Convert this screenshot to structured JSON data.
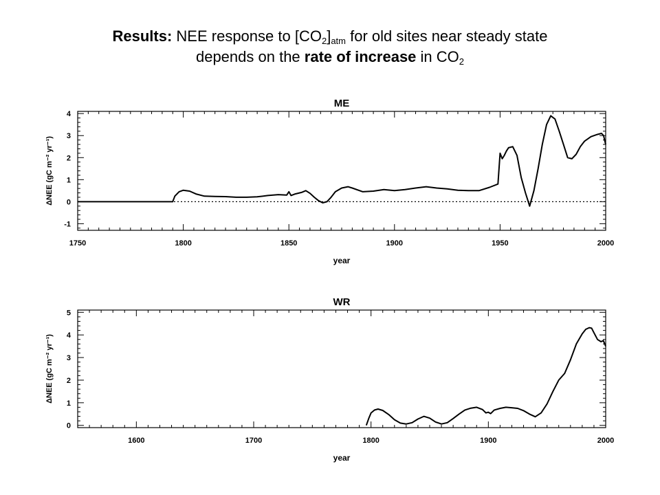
{
  "slide": {
    "title_bold_1": "Results:",
    "title_text_1": " NEE response to [CO",
    "title_sub_1": "2",
    "title_text_2": "]",
    "title_sub_2": "atm",
    "title_text_3": " for old sites near steady state",
    "title_text_4": "depends on the ",
    "title_bold_2": "rate of increase",
    "title_text_5": " in CO",
    "title_sub_3": "2"
  },
  "chart_data": [
    {
      "type": "line",
      "title": "ME",
      "xlabel": "year",
      "ylabel": "ΔNEE (gC m⁻² yr⁻¹)",
      "xlim": [
        1750,
        2000
      ],
      "ylim": [
        -1.3,
        4.1
      ],
      "xticks": [
        1750,
        1800,
        1850,
        1900,
        1950,
        2000
      ],
      "yticks": [
        -1,
        0,
        1,
        2,
        3,
        4
      ],
      "zero_line": "dotted",
      "series": [
        {
          "x": [
            1750,
            1795,
            1796,
            1798,
            1800,
            1803,
            1806,
            1810,
            1815,
            1820,
            1825,
            1830,
            1835,
            1840,
            1845,
            1849,
            1850,
            1851,
            1853,
            1856,
            1858,
            1860,
            1862,
            1864,
            1866,
            1868,
            1870,
            1872,
            1875,
            1878,
            1880,
            1885,
            1890,
            1895,
            1900,
            1905,
            1910,
            1915,
            1920,
            1925,
            1930,
            1935,
            1940,
            1945,
            1949,
            1950,
            1951,
            1952,
            1953,
            1954,
            1956,
            1958,
            1960,
            1962,
            1964,
            1966,
            1968,
            1970,
            1972,
            1974,
            1976,
            1978,
            1980,
            1982,
            1984,
            1986,
            1988,
            1990,
            1993,
            1996,
            1998,
            1999,
            2000
          ],
          "y": [
            0,
            0,
            0.25,
            0.45,
            0.52,
            0.48,
            0.35,
            0.25,
            0.24,
            0.23,
            0.2,
            0.2,
            0.22,
            0.28,
            0.32,
            0.3,
            0.45,
            0.28,
            0.35,
            0.42,
            0.5,
            0.38,
            0.2,
            0.05,
            -0.05,
            0.0,
            0.2,
            0.45,
            0.62,
            0.68,
            0.62,
            0.45,
            0.48,
            0.55,
            0.5,
            0.55,
            0.62,
            0.68,
            0.62,
            0.58,
            0.52,
            0.5,
            0.5,
            0.65,
            0.8,
            2.2,
            1.95,
            2.1,
            2.3,
            2.45,
            2.5,
            2.1,
            1.1,
            0.4,
            -0.2,
            0.5,
            1.5,
            2.6,
            3.5,
            3.9,
            3.75,
            3.2,
            2.6,
            2.0,
            1.95,
            2.15,
            2.5,
            2.75,
            2.95,
            3.05,
            3.1,
            3.0,
            2.6
          ]
        }
      ]
    },
    {
      "type": "line",
      "title": "WR",
      "xlabel": "year",
      "ylabel": "ΔNEE (gC m⁻² yr⁻¹)",
      "xlim": [
        1550,
        2000
      ],
      "ylim": [
        -0.1,
        5.1
      ],
      "xticks": [
        1600,
        1700,
        1800,
        1900,
        2000
      ],
      "yticks": [
        0,
        1,
        2,
        3,
        4,
        5
      ],
      "series": [
        {
          "x": [
            1796,
            1798,
            1800,
            1803,
            1806,
            1810,
            1815,
            1820,
            1825,
            1830,
            1835,
            1840,
            1845,
            1850,
            1855,
            1860,
            1865,
            1870,
            1875,
            1880,
            1885,
            1890,
            1895,
            1898,
            1900,
            1902,
            1905,
            1910,
            1915,
            1920,
            1925,
            1930,
            1935,
            1940,
            1945,
            1950,
            1955,
            1960,
            1965,
            1970,
            1975,
            1980,
            1983,
            1986,
            1988,
            1990,
            1993,
            1996,
            1998,
            2000
          ],
          "y": [
            0,
            0.3,
            0.55,
            0.68,
            0.72,
            0.66,
            0.48,
            0.25,
            0.1,
            0.06,
            0.12,
            0.28,
            0.4,
            0.32,
            0.15,
            0.06,
            0.12,
            0.3,
            0.5,
            0.68,
            0.76,
            0.8,
            0.7,
            0.55,
            0.58,
            0.52,
            0.68,
            0.75,
            0.8,
            0.78,
            0.75,
            0.65,
            0.5,
            0.38,
            0.55,
            0.95,
            1.5,
            2.0,
            2.3,
            2.9,
            3.6,
            4.05,
            4.25,
            4.32,
            4.3,
            4.1,
            3.8,
            3.7,
            3.75,
            3.5
          ]
        }
      ]
    }
  ]
}
